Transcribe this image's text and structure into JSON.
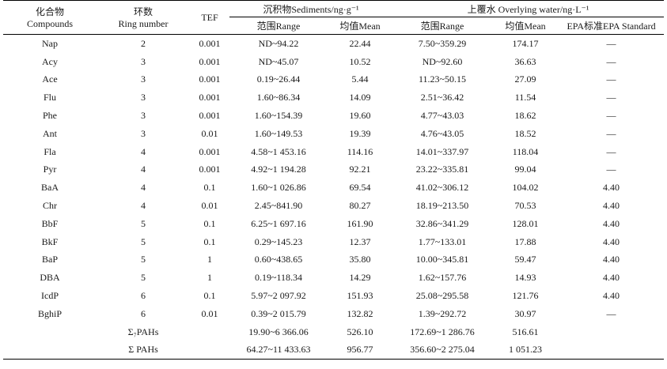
{
  "headers": {
    "compounds_cn": "化合物",
    "compounds_en": "Compounds",
    "ring_cn": "环数",
    "ring_en": "Ring number",
    "tef": "TEF",
    "sediments": "沉积物Sediments/ng·g⁻¹",
    "overlying": "上覆水 Overlying water/ng·L⁻¹",
    "sed_range": "范围Range",
    "sed_mean": "均值Mean",
    "ow_range": "范围Range",
    "ow_mean": "均值Mean",
    "epa": "EPA标准EPA Standard"
  },
  "rows": [
    {
      "compound": "Nap",
      "ring": "2",
      "tef": "0.001",
      "sed_range": "ND~94.22",
      "sed_mean": "22.44",
      "ow_range": "7.50~359.29",
      "ow_mean": "174.17",
      "epa": "—"
    },
    {
      "compound": "Acy",
      "ring": "3",
      "tef": "0.001",
      "sed_range": "ND~45.07",
      "sed_mean": "10.52",
      "ow_range": "ND~92.60",
      "ow_mean": "36.63",
      "epa": "—"
    },
    {
      "compound": "Ace",
      "ring": "3",
      "tef": "0.001",
      "sed_range": "0.19~26.44",
      "sed_mean": "5.44",
      "ow_range": "11.23~50.15",
      "ow_mean": "27.09",
      "epa": "—"
    },
    {
      "compound": "Flu",
      "ring": "3",
      "tef": "0.001",
      "sed_range": "1.60~86.34",
      "sed_mean": "14.09",
      "ow_range": "2.51~36.42",
      "ow_mean": "11.54",
      "epa": "—"
    },
    {
      "compound": "Phe",
      "ring": "3",
      "tef": "0.001",
      "sed_range": "1.60~154.39",
      "sed_mean": "19.60",
      "ow_range": "4.77~43.03",
      "ow_mean": "18.62",
      "epa": "—"
    },
    {
      "compound": "Ant",
      "ring": "3",
      "tef": "0.01",
      "sed_range": "1.60~149.53",
      "sed_mean": "19.39",
      "ow_range": "4.76~43.05",
      "ow_mean": "18.52",
      "epa": "—"
    },
    {
      "compound": "Fla",
      "ring": "4",
      "tef": "0.001",
      "sed_range": "4.58~1 453.16",
      "sed_mean": "114.16",
      "ow_range": "14.01~337.97",
      "ow_mean": "118.04",
      "epa": "—"
    },
    {
      "compound": "Pyr",
      "ring": "4",
      "tef": "0.001",
      "sed_range": "4.92~1 194.28",
      "sed_mean": "92.21",
      "ow_range": "23.22~335.81",
      "ow_mean": "99.04",
      "epa": "—"
    },
    {
      "compound": "BaA",
      "ring": "4",
      "tef": "0.1",
      "sed_range": "1.60~1 026.86",
      "sed_mean": "69.54",
      "ow_range": "41.02~306.12",
      "ow_mean": "104.02",
      "epa": "4.40"
    },
    {
      "compound": "Chr",
      "ring": "4",
      "tef": "0.01",
      "sed_range": "2.45~841.90",
      "sed_mean": "80.27",
      "ow_range": "18.19~213.50",
      "ow_mean": "70.53",
      "epa": "4.40"
    },
    {
      "compound": "BbF",
      "ring": "5",
      "tef": "0.1",
      "sed_range": "6.25~1 697.16",
      "sed_mean": "161.90",
      "ow_range": "32.86~341.29",
      "ow_mean": "128.01",
      "epa": "4.40"
    },
    {
      "compound": "BkF",
      "ring": "5",
      "tef": "0.1",
      "sed_range": "0.29~145.23",
      "sed_mean": "12.37",
      "ow_range": "1.77~133.01",
      "ow_mean": "17.88",
      "epa": "4.40"
    },
    {
      "compound": "BaP",
      "ring": "5",
      "tef": "1",
      "sed_range": "0.60~438.65",
      "sed_mean": "35.80",
      "ow_range": "10.00~345.81",
      "ow_mean": "59.47",
      "epa": "4.40"
    },
    {
      "compound": "DBA",
      "ring": "5",
      "tef": "1",
      "sed_range": "0.19~118.34",
      "sed_mean": "14.29",
      "ow_range": "1.62~157.76",
      "ow_mean": "14.93",
      "epa": "4.40"
    },
    {
      "compound": "IcdP",
      "ring": "6",
      "tef": "0.1",
      "sed_range": "5.97~2 097.92",
      "sed_mean": "151.93",
      "ow_range": "25.08~295.58",
      "ow_mean": "121.76",
      "epa": "4.40"
    },
    {
      "compound": "BghiP",
      "ring": "6",
      "tef": "0.01",
      "sed_range": "0.39~2 015.79",
      "sed_mean": "132.82",
      "ow_range": "1.39~292.72",
      "ow_mean": "30.97",
      "epa": "—"
    }
  ],
  "totals": [
    {
      "label": "Σ₇PAHs",
      "sed_range": "19.90~6 366.06",
      "sed_mean": "526.10",
      "ow_range": "172.69~1 286.76",
      "ow_mean": "516.61"
    },
    {
      "label": "Σ PAHs",
      "sed_range": "64.27~11 433.63",
      "sed_mean": "956.77",
      "ow_range": "356.60~2 275.04",
      "ow_mean": "1 051.23"
    }
  ]
}
